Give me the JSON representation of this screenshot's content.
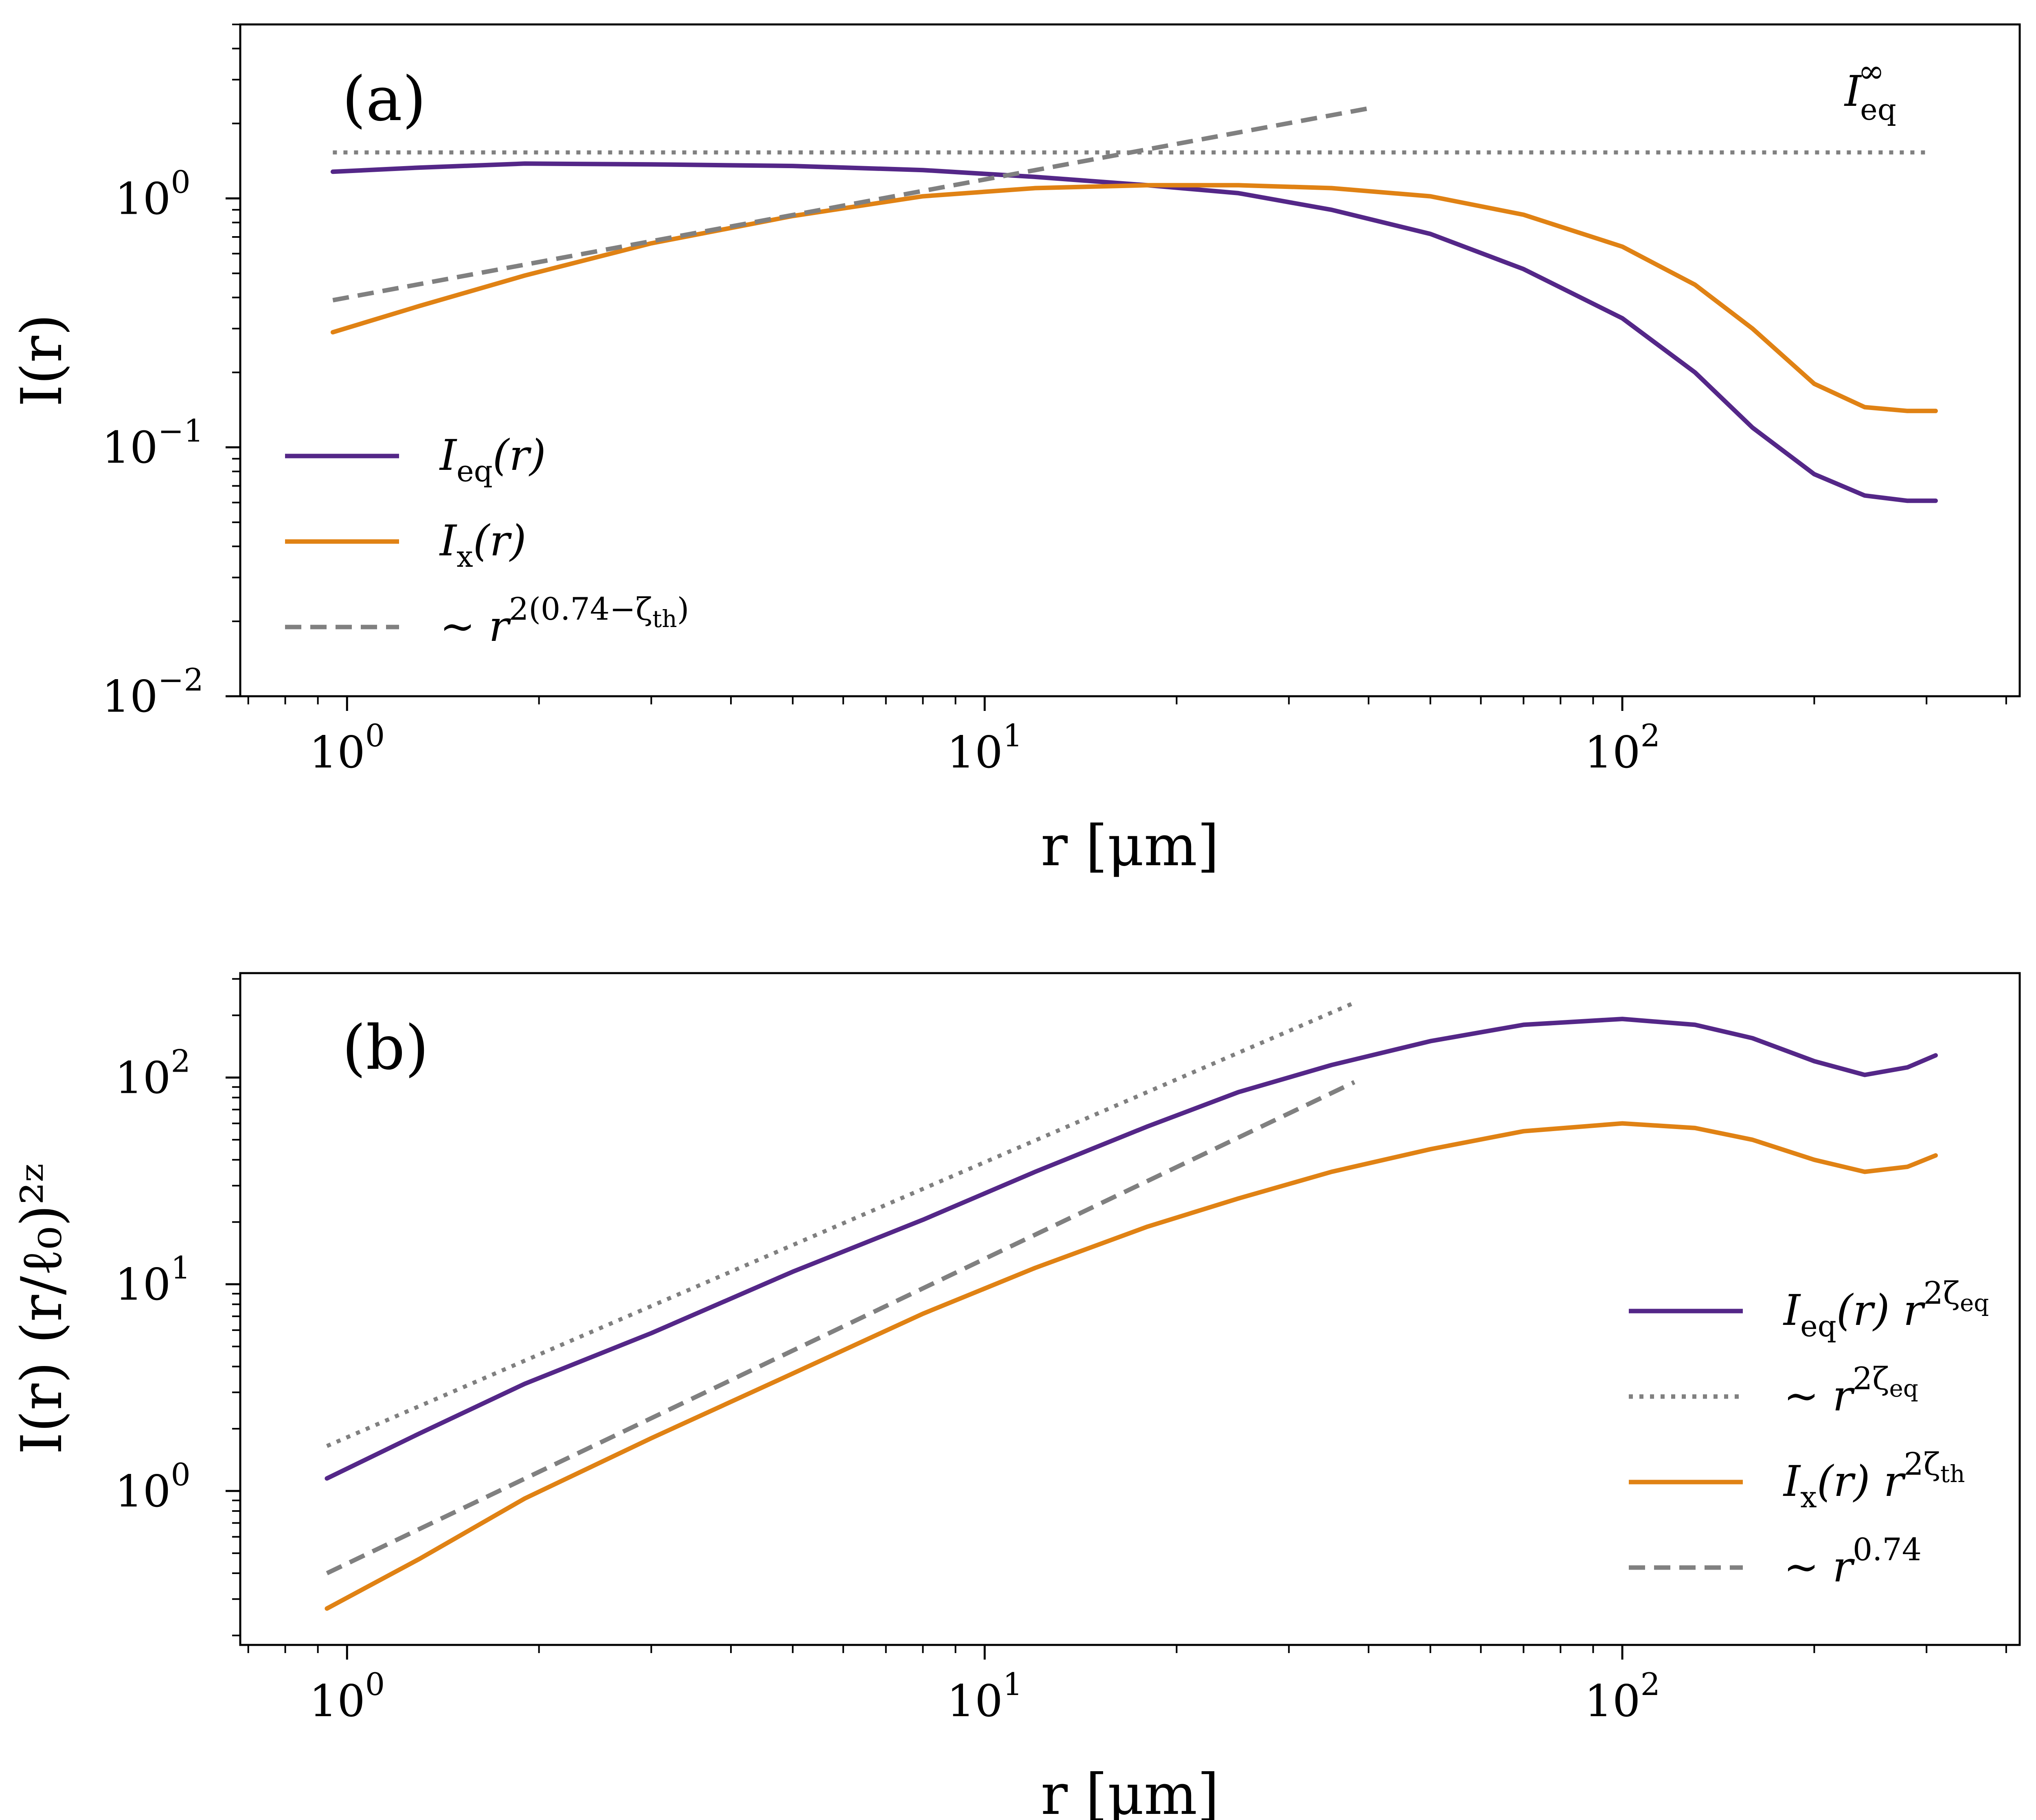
{
  "figure": {
    "background": "#ffffff"
  },
  "colors": {
    "eq": "#542788",
    "x": "#e08214",
    "ref": "#808080",
    "axis": "#000000"
  },
  "chart_data": [
    {
      "id": "a",
      "type": "line",
      "scale": "log-log",
      "panel_label": "(a)",
      "xlabel": "r [μm]",
      "ylabel": "I(r)",
      "xlim": [
        0.68,
        420
      ],
      "ylim": [
        0.01,
        5.0
      ],
      "xticks": [
        {
          "value": 1,
          "label": "10",
          "exp": "0"
        },
        {
          "value": 10,
          "label": "10",
          "exp": "1"
        },
        {
          "value": 100,
          "label": "10",
          "exp": "2"
        }
      ],
      "yticks": [
        {
          "value": 0.01,
          "label": "10",
          "exp": "−2"
        },
        {
          "value": 0.1,
          "label": "10",
          "exp": "−1"
        },
        {
          "value": 1,
          "label": "10",
          "exp": "0"
        }
      ],
      "series": [
        {
          "key": "eq",
          "name": "I_eq(r)",
          "style": "solid",
          "color_key": "eq",
          "x": [
            0.95,
            1.3,
            1.9,
            3,
            5,
            8,
            12,
            18,
            25,
            35,
            50,
            70,
            100,
            130,
            160,
            200,
            240,
            280,
            310
          ],
          "y": [
            1.28,
            1.33,
            1.38,
            1.37,
            1.35,
            1.3,
            1.22,
            1.13,
            1.05,
            0.9,
            0.72,
            0.52,
            0.33,
            0.2,
            0.12,
            0.078,
            0.064,
            0.061,
            0.061
          ]
        },
        {
          "key": "x",
          "name": "I_x(r)",
          "style": "solid",
          "color_key": "x",
          "x": [
            0.95,
            1.3,
            1.9,
            3,
            5,
            8,
            12,
            18,
            25,
            35,
            50,
            70,
            100,
            130,
            160,
            200,
            240,
            280,
            310
          ],
          "y": [
            0.29,
            0.37,
            0.49,
            0.66,
            0.85,
            1.02,
            1.1,
            1.13,
            1.13,
            1.1,
            1.02,
            0.86,
            0.64,
            0.45,
            0.3,
            0.18,
            0.145,
            0.14,
            0.14
          ]
        },
        {
          "key": "ref",
          "name": "ref-slope",
          "style": "dashed",
          "color_key": "ref",
          "x": [
            0.95,
            40
          ],
          "y": [
            0.39,
            2.3
          ]
        },
        {
          "key": "inf",
          "name": "I_eq^inf",
          "style": "dotted",
          "color_key": "ref",
          "x": [
            0.95,
            300
          ],
          "y": [
            1.53,
            1.53
          ]
        }
      ],
      "annotation": {
        "base": "I",
        "sub": "eq",
        "sup": "∞"
      },
      "legend": {
        "position": "lower-left",
        "items": [
          {
            "key": "eq",
            "style": "solid",
            "color_key": "eq",
            "text": "I",
            "sub": "eq",
            "tail": "(r)"
          },
          {
            "key": "x",
            "style": "solid",
            "color_key": "x",
            "text": "I",
            "sub": "x",
            "tail": "(r)"
          },
          {
            "key": "ref",
            "style": "dashed",
            "color_key": "ref",
            "text": "∼ r",
            "sup": "2(0.74−ζ",
            "supsub": "th",
            "supend": ")"
          }
        ]
      }
    },
    {
      "id": "b",
      "type": "line",
      "scale": "log-log",
      "panel_label": "(b)",
      "xlabel": "r [μm]",
      "ylabel": "I(r) (r/ℓ₀)²ᶻ",
      "xlim": [
        0.68,
        420
      ],
      "ylim": [
        0.18,
        320
      ],
      "xticks": [
        {
          "value": 1,
          "label": "10",
          "exp": "0"
        },
        {
          "value": 10,
          "label": "10",
          "exp": "1"
        },
        {
          "value": 100,
          "label": "10",
          "exp": "2"
        }
      ],
      "yticks": [
        {
          "value": 1,
          "label": "10",
          "exp": "0"
        },
        {
          "value": 10,
          "label": "10",
          "exp": "1"
        },
        {
          "value": 100,
          "label": "10",
          "exp": "2"
        }
      ],
      "series": [
        {
          "key": "eq",
          "name": "I_eq(r) r^{2ζeq}",
          "style": "solid",
          "color_key": "eq",
          "x": [
            0.93,
            1.3,
            1.9,
            3,
            5,
            8,
            12,
            18,
            25,
            35,
            50,
            70,
            100,
            130,
            160,
            200,
            240,
            280,
            310
          ],
          "y": [
            1.15,
            1.9,
            3.3,
            5.8,
            11.5,
            20.5,
            35,
            58,
            85,
            115,
            150,
            180,
            192,
            180,
            155,
            120,
            103,
            112,
            128
          ]
        },
        {
          "key": "dot",
          "name": "ref r^{2ζeq}",
          "style": "dotted",
          "color_key": "ref",
          "x": [
            0.93,
            38
          ],
          "y": [
            1.65,
            230
          ]
        },
        {
          "key": "x",
          "name": "I_x(r) r^{2ζth}",
          "style": "solid",
          "color_key": "x",
          "x": [
            0.93,
            1.3,
            1.9,
            3,
            5,
            8,
            12,
            18,
            25,
            35,
            50,
            70,
            100,
            130,
            160,
            200,
            240,
            280,
            310
          ],
          "y": [
            0.27,
            0.47,
            0.92,
            1.8,
            3.7,
            7.2,
            12,
            19,
            26,
            35,
            45,
            55,
            60,
            57,
            50,
            40,
            35,
            37,
            42
          ]
        },
        {
          "key": "dash",
          "name": "ref r^0.74",
          "style": "dashed",
          "color_key": "ref",
          "x": [
            0.93,
            38
          ],
          "y": [
            0.4,
            95
          ]
        }
      ],
      "legend": {
        "position": "lower-right",
        "items": [
          {
            "key": "eq",
            "style": "solid",
            "color_key": "eq",
            "text": "I",
            "sub": "eq",
            "tail": "(r) r",
            "sup": "2ζ",
            "supsub": "eq"
          },
          {
            "key": "dot",
            "style": "dotted",
            "color_key": "ref",
            "text": "∼ r",
            "sup": "2ζ",
            "supsub": "eq"
          },
          {
            "key": "x",
            "style": "solid",
            "color_key": "x",
            "text": "I",
            "sub": "x",
            "tail": "(r) r",
            "sup": "2ζ",
            "supsub": "th"
          },
          {
            "key": "dash",
            "style": "dashed",
            "color_key": "ref",
            "text": "∼ r",
            "sup": "0.74"
          }
        ]
      }
    }
  ]
}
